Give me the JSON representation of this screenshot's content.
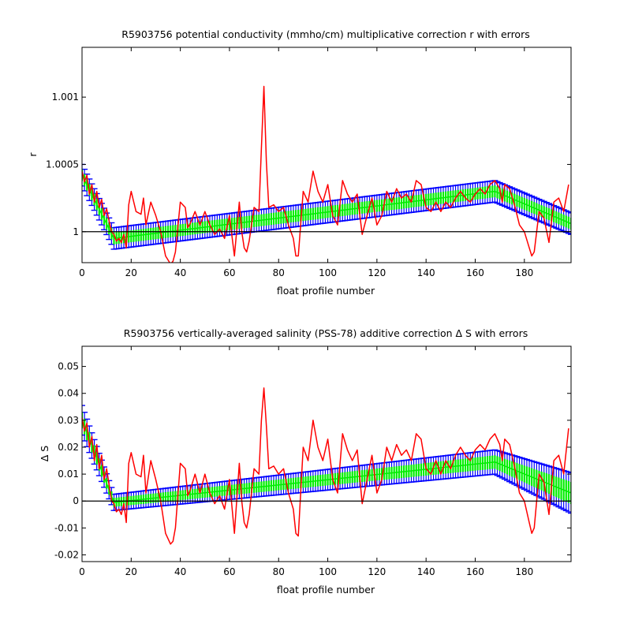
{
  "chart_data": [
    {
      "type": "line",
      "title": "R5903756 potential conductivity (mmho/cm) multiplicative correction r with errors",
      "xlabel": "float profile number",
      "ylabel": "r",
      "xlim": [
        0,
        199
      ],
      "ylim": [
        0.99977,
        1.00137
      ],
      "xticks": [
        0,
        20,
        40,
        60,
        80,
        100,
        120,
        140,
        160,
        180
      ],
      "yticks": [
        1,
        1.0005,
        1.001
      ],
      "ytick_labels": [
        "1",
        "1.0005",
        "1.001"
      ],
      "grid": false,
      "reference_line": 1,
      "colors": {
        "raw": "#ff0000",
        "fit": "#00ee00",
        "error_bars": "#0000ff",
        "reference": "#000000"
      },
      "fit_knots": {
        "x": [
          0,
          13,
          168,
          199
        ],
        "y": [
          1.00042,
          0.99995,
          1.0003,
          1.00006
        ]
      },
      "error_knots": {
        "x": [
          0,
          13,
          168,
          199
        ],
        "e": [
          8e-05,
          8e-05,
          8e-05,
          8e-05
        ]
      },
      "raw": {
        "x": [
          0,
          1,
          2,
          3,
          4,
          5,
          6,
          7,
          8,
          9,
          10,
          11,
          12,
          13,
          14,
          15,
          16,
          17,
          18,
          19,
          20,
          22,
          24,
          25,
          26,
          28,
          30,
          32,
          34,
          36,
          37,
          38,
          40,
          42,
          43,
          44,
          46,
          48,
          50,
          52,
          54,
          56,
          58,
          60,
          62,
          64,
          65,
          66,
          67,
          68,
          70,
          72,
          73,
          74,
          75,
          76,
          78,
          80,
          82,
          84,
          86,
          87,
          88,
          90,
          92,
          94,
          96,
          98,
          100,
          102,
          104,
          106,
          108,
          110,
          112,
          114,
          116,
          118,
          120,
          122,
          124,
          126,
          128,
          130,
          132,
          134,
          136,
          138,
          140,
          142,
          144,
          146,
          148,
          150,
          152,
          154,
          156,
          158,
          160,
          162,
          164,
          166,
          168,
          170,
          171,
          172,
          174,
          176,
          178,
          180,
          182,
          183,
          184,
          186,
          188,
          190,
          192,
          194,
          196,
          198
        ],
        "y": [
          1.00045,
          1.00037,
          1.00042,
          1.00028,
          1.00035,
          1.00022,
          1.0003,
          1.00018,
          1.00024,
          1.00012,
          1.00017,
          1.00008,
          1.0,
          0.99998,
          0.99993,
          0.99995,
          0.99992,
          0.99998,
          0.99988,
          1.0002,
          1.0003,
          1.00015,
          1.00013,
          1.00025,
          1.00005,
          1.00022,
          1.00012,
          1.0,
          0.99982,
          0.99976,
          0.99978,
          0.99985,
          1.00022,
          1.00018,
          1.00003,
          1.00006,
          1.00015,
          1.00005,
          1.00015,
          1.00005,
          0.99998,
          1.00002,
          0.99995,
          1.00012,
          0.99982,
          1.00022,
          1.0,
          0.99988,
          0.99985,
          0.99993,
          1.00018,
          1.00015,
          1.00062,
          1.00108,
          1.00052,
          1.00018,
          1.0002,
          1.00015,
          1.00018,
          1.00005,
          0.99995,
          0.99982,
          0.99982,
          1.0003,
          1.00022,
          1.00045,
          1.0003,
          1.00022,
          1.00035,
          1.00012,
          1.00005,
          1.00038,
          1.00028,
          1.00022,
          1.00028,
          0.99998,
          1.00012,
          1.00025,
          1.00005,
          1.00012,
          1.0003,
          1.00022,
          1.00032,
          1.00025,
          1.00028,
          1.00022,
          1.00038,
          1.00035,
          1.00018,
          1.00015,
          1.00022,
          1.00015,
          1.00022,
          1.00018,
          1.00025,
          1.0003,
          1.00025,
          1.00022,
          1.00028,
          1.00032,
          1.00028,
          1.00035,
          1.00038,
          1.00032,
          1.00022,
          1.00035,
          1.00032,
          1.0002,
          1.00005,
          1.0,
          0.99988,
          0.99982,
          0.99985,
          1.00015,
          1.0001,
          0.99992,
          1.00022,
          1.00025,
          1.00015,
          1.00035
        ]
      }
    },
    {
      "type": "line",
      "title": "R5903756 vertically-averaged salinity (PSS-78) additive correction Δ S with errors",
      "xlabel": "float profile number",
      "ylabel": "Δ S",
      "xlim": [
        0,
        199
      ],
      "ylim": [
        -0.0225,
        0.0575
      ],
      "xticks": [
        0,
        20,
        40,
        60,
        80,
        100,
        120,
        140,
        160,
        180
      ],
      "yticks": [
        -0.02,
        -0.01,
        0,
        0.01,
        0.02,
        0.03,
        0.04,
        0.05
      ],
      "ytick_labels": [
        "-0.02",
        "-0.01",
        "0",
        "0.01",
        "0.02",
        "0.03",
        "0.04",
        "0.05"
      ],
      "grid": false,
      "reference_line": 0,
      "colors": {
        "raw": "#ff0000",
        "fit": "#00ee00",
        "error_bars": "#0000ff",
        "reference": "#000000"
      },
      "fit_knots": {
        "x": [
          0,
          13,
          168,
          199
        ],
        "y": [
          0.03,
          -0.0005,
          0.0145,
          0.003
        ]
      },
      "error_knots": {
        "x": [
          0,
          13,
          168,
          199
        ],
        "e": [
          0.0055,
          0.003,
          0.0045,
          0.0075
        ]
      },
      "raw": {
        "x": [
          0,
          1,
          2,
          3,
          4,
          5,
          6,
          7,
          8,
          9,
          10,
          11,
          12,
          13,
          14,
          15,
          16,
          17,
          18,
          19,
          20,
          22,
          24,
          25,
          26,
          28,
          30,
          32,
          34,
          36,
          37,
          38,
          40,
          42,
          43,
          44,
          46,
          48,
          50,
          52,
          54,
          56,
          58,
          60,
          62,
          64,
          65,
          66,
          67,
          68,
          70,
          72,
          73,
          74,
          75,
          76,
          78,
          80,
          82,
          84,
          86,
          87,
          88,
          90,
          92,
          94,
          96,
          98,
          100,
          102,
          104,
          106,
          108,
          110,
          112,
          114,
          116,
          118,
          120,
          122,
          124,
          126,
          128,
          130,
          132,
          134,
          136,
          138,
          140,
          142,
          144,
          146,
          148,
          150,
          152,
          154,
          156,
          158,
          160,
          162,
          164,
          166,
          168,
          170,
          171,
          172,
          174,
          176,
          178,
          180,
          182,
          183,
          184,
          186,
          188,
          190,
          192,
          194,
          196,
          198
        ],
        "y": [
          0.031,
          0.026,
          0.029,
          0.02,
          0.024,
          0.015,
          0.021,
          0.012,
          0.017,
          0.008,
          0.012,
          0.006,
          0.0,
          -0.001,
          -0.004,
          -0.003,
          -0.005,
          -0.001,
          -0.008,
          0.014,
          0.018,
          0.01,
          0.009,
          0.017,
          0.003,
          0.015,
          0.008,
          0.0,
          -0.012,
          -0.016,
          -0.015,
          -0.01,
          0.014,
          0.012,
          0.002,
          0.004,
          0.01,
          0.003,
          0.01,
          0.003,
          -0.001,
          0.002,
          -0.003,
          0.008,
          -0.012,
          0.014,
          0.0,
          -0.008,
          -0.01,
          -0.005,
          0.012,
          0.01,
          0.03,
          0.042,
          0.028,
          0.012,
          0.013,
          0.01,
          0.012,
          0.003,
          -0.003,
          -0.012,
          -0.013,
          0.02,
          0.015,
          0.03,
          0.02,
          0.015,
          0.023,
          0.008,
          0.003,
          0.025,
          0.019,
          0.015,
          0.019,
          -0.001,
          0.008,
          0.017,
          0.003,
          0.008,
          0.02,
          0.015,
          0.021,
          0.017,
          0.019,
          0.015,
          0.025,
          0.023,
          0.012,
          0.01,
          0.015,
          0.01,
          0.015,
          0.012,
          0.017,
          0.02,
          0.017,
          0.015,
          0.019,
          0.021,
          0.019,
          0.023,
          0.025,
          0.021,
          0.015,
          0.023,
          0.021,
          0.013,
          0.003,
          0.0,
          -0.008,
          -0.012,
          -0.01,
          0.01,
          0.007,
          -0.005,
          0.015,
          0.017,
          0.01,
          0.027
        ]
      }
    }
  ]
}
